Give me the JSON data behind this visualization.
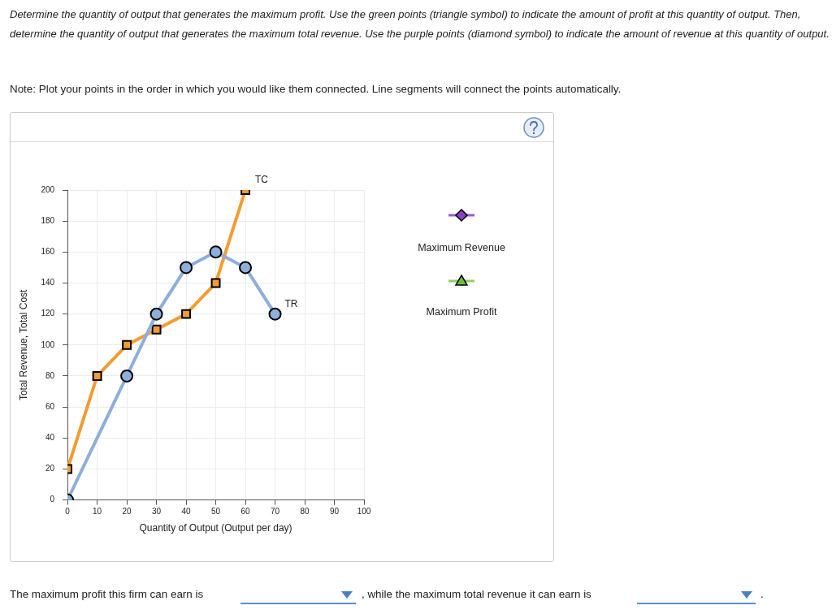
{
  "chart_data": {
    "type": "line",
    "title": "Determine the quantity of output that generates the maximum profit. Use the green points (triangle symbol) to indicate the amount of profit at this quantity of output. Then, determine the quantity of output that generates the maximum total revenue. Use the purple points (diamond symbol) to indicate the amount of revenue at this quantity of output.",
    "subtitle": "Note: Plot your points in the order in which you would like them connected. Line segments will connect the points automatically.",
    "xlabel": "Quantity of Output (Output per day)",
    "ylabel": "Total Revenue, Total Cost",
    "series": [
      {
        "name": "TR",
        "color": "#8eaedb",
        "marker": "circle",
        "x": [
          0,
          20,
          30,
          40,
          50,
          60,
          70
        ],
        "values": [
          0,
          80,
          120,
          150,
          160,
          150,
          120
        ]
      },
      {
        "name": "TC",
        "color": "#f39c32",
        "marker": "square",
        "x": [
          0,
          10,
          20,
          30,
          40,
          50,
          60
        ],
        "values": [
          20,
          80,
          100,
          110,
          120,
          140,
          200
        ]
      }
    ],
    "xlim": [
      0,
      100
    ],
    "xticks": [
      0,
      10,
      20,
      30,
      40,
      50,
      60,
      70,
      80,
      90,
      100
    ],
    "ylim": [
      0,
      200
    ],
    "yticks": [
      0,
      20,
      40,
      60,
      80,
      100,
      120,
      140,
      160,
      180,
      200
    ],
    "grid": true,
    "legend": false,
    "annotations": [
      "Maximum Revenue",
      "Maximum Profit",
      "The maximum profit this firm can earn is",
      ", while the maximum total revenue it can earn is",
      "."
    ]
  }
}
